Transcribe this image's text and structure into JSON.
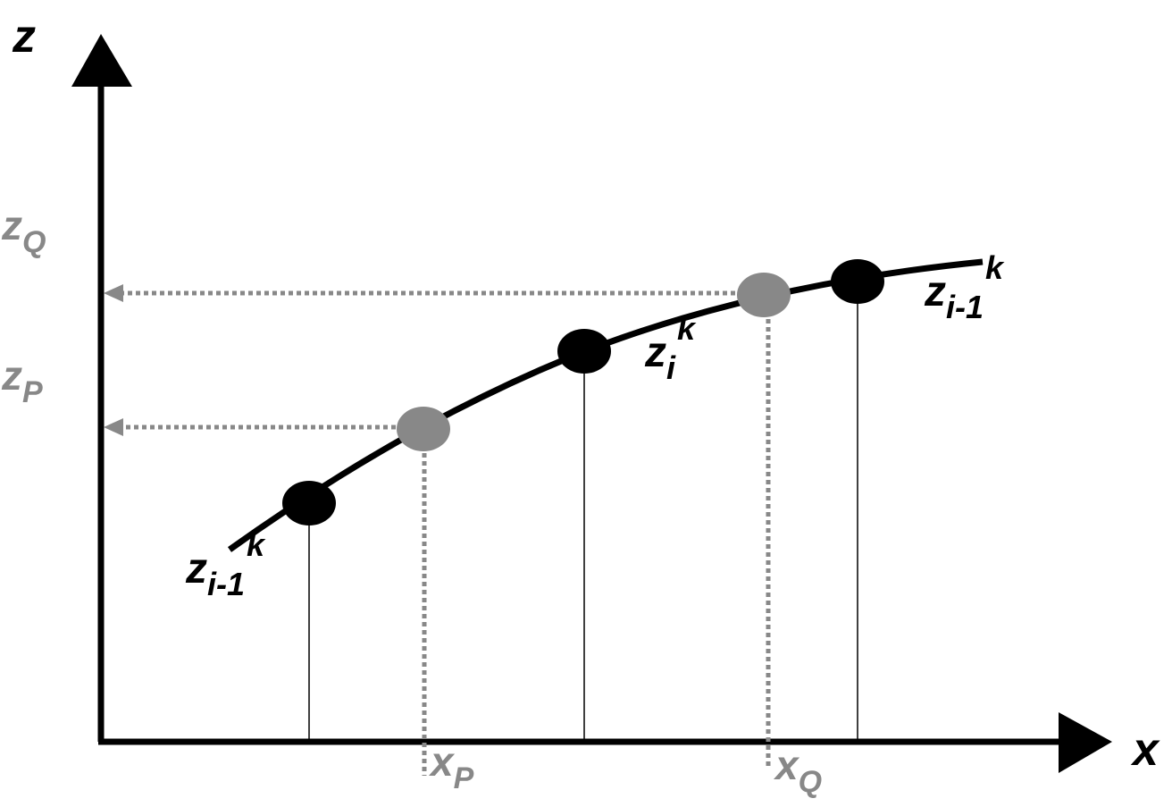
{
  "axes": {
    "y_label": "z",
    "x_label": "x"
  },
  "projections": {
    "z_Q": {
      "base": "z",
      "sub": "Q"
    },
    "z_P": {
      "base": "z",
      "sub": "P"
    },
    "x_P": {
      "base": "x",
      "sub": "P"
    },
    "x_Q": {
      "base": "x",
      "sub": "Q"
    }
  },
  "nodes": [
    {
      "base": "z",
      "sub": "i-1",
      "sup": "k"
    },
    {
      "base": "z",
      "sub": "i",
      "sup": "k"
    },
    {
      "base": "z",
      "sub": "i-1",
      "sup": "k"
    }
  ]
}
